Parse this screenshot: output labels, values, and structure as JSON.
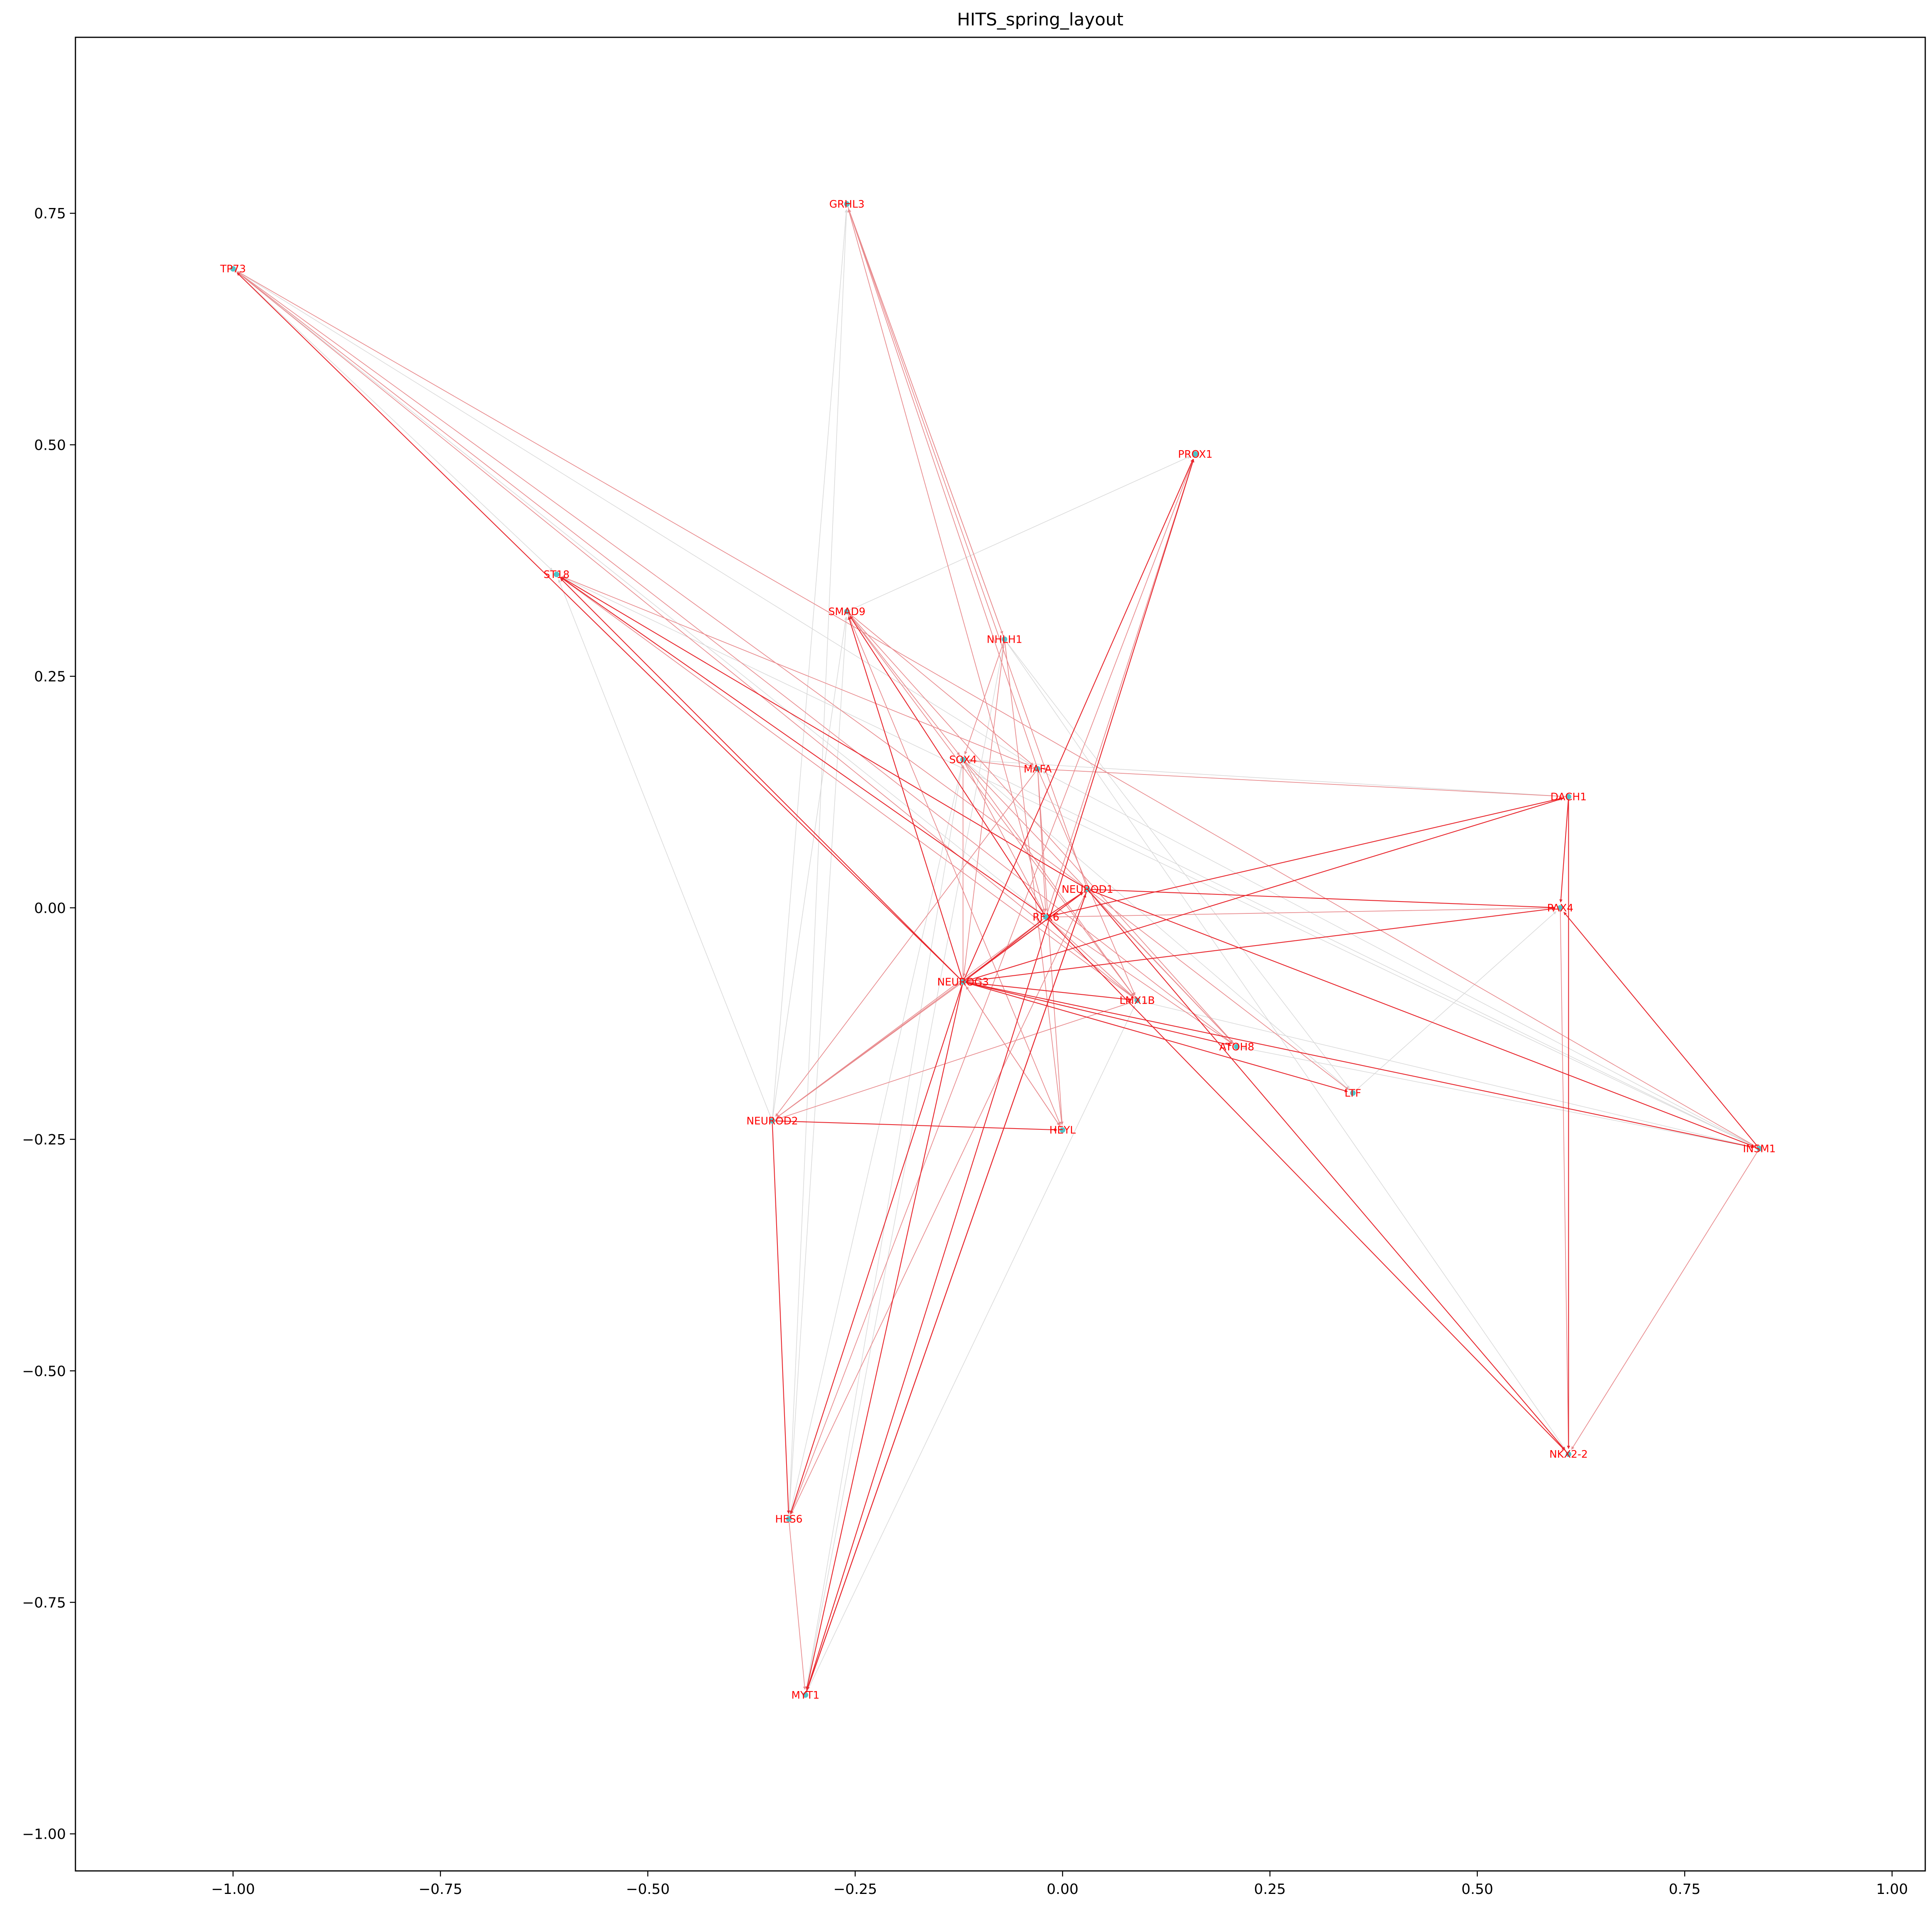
{
  "chart_data": {
    "type": "scatter",
    "title": "HITS_spring_layout",
    "xlabel": "",
    "ylabel": "",
    "xlim": [
      -1.19,
      1.04
    ],
    "ylim": [
      -1.04,
      0.94
    ],
    "x_ticks": [
      -1.0,
      -0.75,
      -0.5,
      -0.25,
      0.0,
      0.25,
      0.5,
      0.75,
      1.0
    ],
    "x_tick_labels": [
      "−1.00",
      "−0.75",
      "−0.50",
      "−0.25",
      "0.00",
      "0.25",
      "0.50",
      "0.75",
      "1.00"
    ],
    "y_ticks": [
      0.75,
      0.5,
      0.25,
      0.0,
      -0.25,
      -0.5,
      -0.75,
      -1.0
    ],
    "y_tick_labels": [
      "0.75",
      "0.50",
      "0.25",
      "0.00",
      "−0.25",
      "−0.50",
      "−0.75",
      "−1.00"
    ],
    "grid": false,
    "colors": {
      "node": "#4fc3c8",
      "label": "#ff0000",
      "edge_strong": "#e8262d",
      "edge_medium": "#e88a8d",
      "edge_weak": "#d9d9d9"
    },
    "nodes": [
      {
        "name": "TP73",
        "x": -1.0,
        "y": 0.69
      },
      {
        "name": "GRHL3",
        "x": -0.26,
        "y": 0.76
      },
      {
        "name": "PROX1",
        "x": 0.16,
        "y": 0.49
      },
      {
        "name": "ST18",
        "x": -0.61,
        "y": 0.36
      },
      {
        "name": "SMAD9",
        "x": -0.26,
        "y": 0.32
      },
      {
        "name": "NHLH1",
        "x": -0.07,
        "y": 0.29
      },
      {
        "name": "SOX4",
        "x": -0.12,
        "y": 0.16
      },
      {
        "name": "MAFA",
        "x": -0.03,
        "y": 0.15
      },
      {
        "name": "DACH1",
        "x": 0.61,
        "y": 0.12
      },
      {
        "name": "NEUROD1",
        "x": 0.03,
        "y": 0.02
      },
      {
        "name": "RFX6",
        "x": -0.02,
        "y": -0.01
      },
      {
        "name": "PAX4",
        "x": 0.6,
        "y": 0.0
      },
      {
        "name": "NEUROG3",
        "x": -0.12,
        "y": -0.08
      },
      {
        "name": "LMX1B",
        "x": 0.09,
        "y": -0.1
      },
      {
        "name": "ATOH8",
        "x": 0.21,
        "y": -0.15
      },
      {
        "name": "LTF",
        "x": 0.35,
        "y": -0.2
      },
      {
        "name": "NEUROD2",
        "x": -0.35,
        "y": -0.23
      },
      {
        "name": "HEYL",
        "x": 0.0,
        "y": -0.24
      },
      {
        "name": "INSM1",
        "x": 0.84,
        "y": -0.26
      },
      {
        "name": "NKX2-2",
        "x": 0.61,
        "y": -0.59
      },
      {
        "name": "HES6",
        "x": -0.33,
        "y": -0.66
      },
      {
        "name": "MYT1",
        "x": -0.31,
        "y": -0.85
      }
    ],
    "edges": [
      {
        "source": "TP73",
        "target": "ST18",
        "weight": "weak"
      },
      {
        "source": "TP73",
        "target": "MAFA",
        "weight": "weak"
      },
      {
        "source": "TP73",
        "target": "RFX6",
        "weight": "weak"
      },
      {
        "source": "NEUROG3",
        "target": "TP73",
        "weight": "strong"
      },
      {
        "source": "LMX1B",
        "target": "TP73",
        "weight": "medium"
      },
      {
        "source": "ATOH8",
        "target": "TP73",
        "weight": "medium"
      },
      {
        "source": "NEUROD1",
        "target": "TP73",
        "weight": "medium"
      },
      {
        "source": "INSM1",
        "target": "TP73",
        "weight": "medium"
      },
      {
        "source": "NHLH1",
        "target": "GRHL3",
        "weight": "medium"
      },
      {
        "source": "MAFA",
        "target": "GRHL3",
        "weight": "medium"
      },
      {
        "source": "NEUROD1",
        "target": "GRHL3",
        "weight": "medium"
      },
      {
        "source": "RFX6",
        "target": "GRHL3",
        "weight": "medium"
      },
      {
        "source": "NEUROD2",
        "target": "GRHL3",
        "weight": "weak"
      },
      {
        "source": "HES6",
        "target": "GRHL3",
        "weight": "weak"
      },
      {
        "source": "GRHL3",
        "target": "NHLH1",
        "weight": "medium"
      },
      {
        "source": "NEUROG3",
        "target": "PROX1",
        "weight": "strong"
      },
      {
        "source": "RFX6",
        "target": "PROX1",
        "weight": "medium"
      },
      {
        "source": "MYT1",
        "target": "PROX1",
        "weight": "strong"
      },
      {
        "source": "HES6",
        "target": "PROX1",
        "weight": "medium"
      },
      {
        "source": "SMAD9",
        "target": "PROX1",
        "weight": "weak"
      },
      {
        "source": "NEUROG3",
        "target": "ST18",
        "weight": "strong"
      },
      {
        "source": "RFX6",
        "target": "ST18",
        "weight": "strong"
      },
      {
        "source": "NEUROD1",
        "target": "ST18",
        "weight": "strong"
      },
      {
        "source": "LMX1B",
        "target": "ST18",
        "weight": "medium"
      },
      {
        "source": "MAFA",
        "target": "ST18",
        "weight": "medium"
      },
      {
        "source": "INSM1",
        "target": "ST18",
        "weight": "weak"
      },
      {
        "source": "NEUROD2",
        "target": "ST18",
        "weight": "weak"
      },
      {
        "source": "NEUROG3",
        "target": "SMAD9",
        "weight": "strong"
      },
      {
        "source": "RFX6",
        "target": "SMAD9",
        "weight": "strong"
      },
      {
        "source": "LMX1B",
        "target": "SMAD9",
        "weight": "medium"
      },
      {
        "source": "ATOH8",
        "target": "SMAD9",
        "weight": "medium"
      },
      {
        "source": "NEUROD2",
        "target": "SMAD9",
        "weight": "weak"
      },
      {
        "source": "SMAD9",
        "target": "SOX4",
        "weight": "medium"
      },
      {
        "source": "SMAD9",
        "target": "MAFA",
        "weight": "medium"
      },
      {
        "source": "SMAD9",
        "target": "HEYL",
        "weight": "medium"
      },
      {
        "source": "NHLH1",
        "target": "SOX4",
        "weight": "medium"
      },
      {
        "source": "NHLH1",
        "target": "NEUROG3",
        "weight": "medium"
      },
      {
        "source": "NHLH1",
        "target": "HEYL",
        "weight": "medium"
      },
      {
        "source": "NHLH1",
        "target": "LTF",
        "weight": "weak"
      },
      {
        "source": "NHLH1",
        "target": "NKX2-2",
        "weight": "weak"
      },
      {
        "source": "MAFA",
        "target": "SOX4",
        "weight": "medium"
      },
      {
        "source": "DACH1",
        "target": "MAFA",
        "weight": "medium"
      },
      {
        "source": "DACH1",
        "target": "SOX4",
        "weight": "weak"
      },
      {
        "source": "SOX4",
        "target": "RFX6",
        "weight": "medium"
      },
      {
        "source": "SOX4",
        "target": "LMX1B",
        "weight": "medium"
      },
      {
        "source": "SOX4",
        "target": "ATOH8",
        "weight": "medium"
      },
      {
        "source": "SOX4",
        "target": "LTF",
        "weight": "weak"
      },
      {
        "source": "MAFA",
        "target": "RFX6",
        "weight": "medium"
      },
      {
        "source": "MAFA",
        "target": "LMX1B",
        "weight": "medium"
      },
      {
        "source": "MAFA",
        "target": "HEYL",
        "weight": "medium"
      },
      {
        "source": "MAFA",
        "target": "NEUROD2",
        "weight": "medium"
      },
      {
        "source": "NEUROG3",
        "target": "NEUROD1",
        "weight": "strong"
      },
      {
        "source": "NEUROG3",
        "target": "RFX6",
        "weight": "strong"
      },
      {
        "source": "NEUROG3",
        "target": "LMX1B",
        "weight": "strong"
      },
      {
        "source": "NEUROG3",
        "target": "ATOH8",
        "weight": "strong"
      },
      {
        "source": "NEUROG3",
        "target": "LTF",
        "weight": "strong"
      },
      {
        "source": "NEUROG3",
        "target": "INSM1",
        "weight": "strong"
      },
      {
        "source": "NEUROG3",
        "target": "PAX4",
        "weight": "strong"
      },
      {
        "source": "NEUROG3",
        "target": "HES6",
        "weight": "strong"
      },
      {
        "source": "NEUROG3",
        "target": "MYT1",
        "weight": "strong"
      },
      {
        "source": "NEUROG3",
        "target": "NEUROD2",
        "weight": "medium"
      },
      {
        "source": "NEUROG3",
        "target": "HEYL",
        "weight": "medium"
      },
      {
        "source": "NEUROG3",
        "target": "SOX4",
        "weight": "medium"
      },
      {
        "source": "NEUROG3",
        "target": "DACH1",
        "weight": "strong"
      },
      {
        "source": "RFX6",
        "target": "NEUROD1",
        "weight": "strong"
      },
      {
        "source": "RFX6",
        "target": "PAX4",
        "weight": "medium"
      },
      {
        "source": "RFX6",
        "target": "NKX2-2",
        "weight": "strong"
      },
      {
        "source": "RFX6",
        "target": "DACH1",
        "weight": "strong"
      },
      {
        "source": "RFX6",
        "target": "LMX1B",
        "weight": "medium"
      },
      {
        "source": "RFX6",
        "target": "ATOH8",
        "weight": "medium"
      },
      {
        "source": "RFX6",
        "target": "NEUROD2",
        "weight": "medium"
      },
      {
        "source": "NEUROD1",
        "target": "PAX4",
        "weight": "strong"
      },
      {
        "source": "NEUROD1",
        "target": "NKX2-2",
        "weight": "strong"
      },
      {
        "source": "NEUROD1",
        "target": "INSM1",
        "weight": "strong"
      },
      {
        "source": "NEUROD1",
        "target": "LTF",
        "weight": "medium"
      },
      {
        "source": "NEUROD1",
        "target": "ATOH8",
        "weight": "medium"
      },
      {
        "source": "NEUROD1",
        "target": "MYT1",
        "weight": "strong"
      },
      {
        "source": "NEUROD1",
        "target": "HES6",
        "weight": "medium"
      },
      {
        "source": "NEUROD1",
        "target": "NEUROD2",
        "weight": "medium"
      },
      {
        "source": "DACH1",
        "target": "PAX4",
        "weight": "strong"
      },
      {
        "source": "DACH1",
        "target": "NKX2-2",
        "weight": "strong"
      },
      {
        "source": "PAX4",
        "target": "NKX2-2",
        "weight": "medium"
      },
      {
        "source": "INSM1",
        "target": "PAX4",
        "weight": "strong"
      },
      {
        "source": "INSM1",
        "target": "NKX2-2",
        "weight": "medium"
      },
      {
        "source": "INSM1",
        "target": "LMX1B",
        "weight": "weak"
      },
      {
        "source": "INSM1",
        "target": "ATOH8",
        "weight": "weak"
      },
      {
        "source": "INSM1",
        "target": "MAFA",
        "weight": "weak"
      },
      {
        "source": "INSM1",
        "target": "SOX4",
        "weight": "weak"
      },
      {
        "source": "HEYL",
        "target": "NEUROG3",
        "weight": "medium"
      },
      {
        "source": "NEUROD2",
        "target": "HES6",
        "weight": "strong"
      },
      {
        "source": "NEUROD2",
        "target": "HEYL",
        "weight": "strong"
      },
      {
        "source": "NEUROD2",
        "target": "LMX1B",
        "weight": "medium"
      },
      {
        "source": "HES6",
        "target": "MYT1",
        "weight": "medium"
      },
      {
        "source": "HES6",
        "target": "SMAD9",
        "weight": "weak"
      },
      {
        "source": "MYT1",
        "target": "LMX1B",
        "weight": "weak"
      },
      {
        "source": "MYT1",
        "target": "NEUROD1",
        "weight": "strong"
      },
      {
        "source": "MYT1",
        "target": "NHLH1",
        "weight": "weak"
      },
      {
        "source": "LTF",
        "target": "PAX4",
        "weight": "weak"
      },
      {
        "source": "SOX4",
        "target": "MYT1",
        "weight": "weak"
      },
      {
        "source": "SOX4",
        "target": "HES6",
        "weight": "weak"
      }
    ]
  }
}
